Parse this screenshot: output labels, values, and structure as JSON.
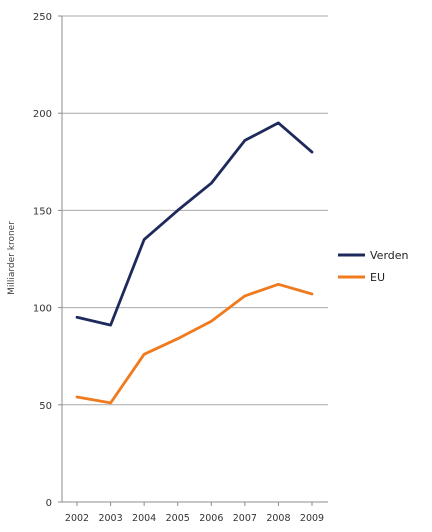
{
  "chart_data": {
    "type": "line",
    "title": "",
    "xlabel": "",
    "ylabel": "Milliarder kroner",
    "ylim": [
      0,
      250
    ],
    "yticks": [
      0,
      50,
      100,
      150,
      200,
      250
    ],
    "grid": true,
    "legend_position": "right",
    "categories": [
      "2002",
      "2003",
      "2004",
      "2005",
      "2006",
      "2007",
      "2008",
      "2009"
    ],
    "series": [
      {
        "name": "Verden",
        "color": "#1f2a5c",
        "values": [
          95,
          91,
          135,
          150,
          164,
          186,
          195,
          180
        ]
      },
      {
        "name": "EU",
        "color": "#f07a1e",
        "values": [
          54,
          51,
          76,
          84,
          93,
          106,
          112,
          107
        ]
      }
    ]
  }
}
